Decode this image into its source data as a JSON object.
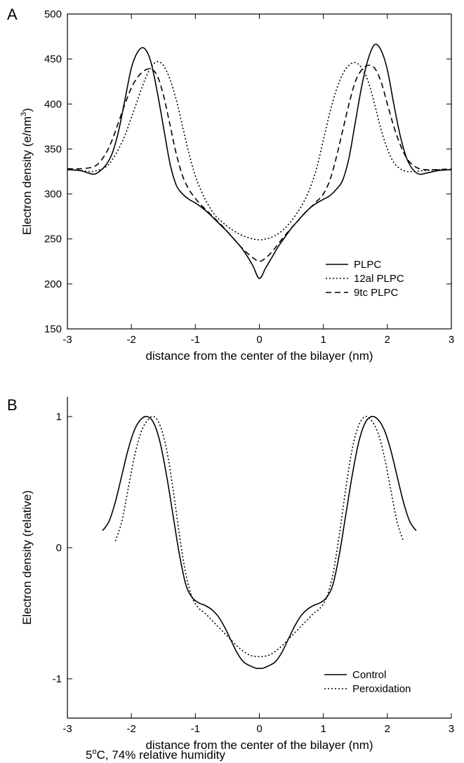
{
  "chart_data": [
    {
      "panel": "A",
      "type": "line",
      "xlabel": "distance from the center of the bilayer (nm)",
      "ylabel": "Electron density (e/nm",
      "ylabel_sup": "3",
      "ylabel_close": ")",
      "xlim": [
        -3,
        3
      ],
      "ylim": [
        150,
        500
      ],
      "xticks": [
        -3,
        -2,
        -1,
        0,
        1,
        2,
        3
      ],
      "yticks": [
        150,
        200,
        250,
        300,
        350,
        400,
        450,
        500
      ],
      "legend_position": "lower-right",
      "series": [
        {
          "name": "PLPC",
          "style": "solid",
          "x": [
            -3,
            -2.8,
            -2.6,
            -2.5,
            -2.4,
            -2.3,
            -2.2,
            -2.1,
            -2.0,
            -1.9,
            -1.8,
            -1.7,
            -1.6,
            -1.5,
            -1.4,
            -1.3,
            -1.2,
            -1.1,
            -1.0,
            -0.9,
            -0.8,
            -0.7,
            -0.6,
            -0.5,
            -0.4,
            -0.3,
            -0.2,
            -0.1,
            0,
            0.1,
            0.2,
            0.3,
            0.4,
            0.5,
            0.6,
            0.7,
            0.8,
            0.9,
            1.0,
            1.1,
            1.2,
            1.3,
            1.4,
            1.5,
            1.6,
            1.7,
            1.8,
            1.9,
            2.0,
            2.1,
            2.2,
            2.3,
            2.4,
            2.5,
            2.6,
            2.8,
            3
          ],
          "y": [
            327,
            326,
            322,
            325,
            332,
            345,
            370,
            405,
            440,
            458,
            462,
            448,
            415,
            375,
            335,
            310,
            300,
            294,
            290,
            285,
            279,
            272,
            265,
            258,
            250,
            242,
            232,
            220,
            206,
            218,
            230,
            242,
            252,
            262,
            270,
            278,
            285,
            290,
            294,
            298,
            305,
            315,
            340,
            380,
            420,
            450,
            466,
            460,
            438,
            400,
            365,
            340,
            327,
            322,
            323,
            326,
            327
          ]
        },
        {
          "name": "12al PLPC",
          "style": "dotted",
          "x": [
            -3,
            -2.8,
            -2.6,
            -2.4,
            -2.3,
            -2.2,
            -2.1,
            -2.0,
            -1.9,
            -1.8,
            -1.7,
            -1.6,
            -1.5,
            -1.4,
            -1.3,
            -1.2,
            -1.1,
            -1.0,
            -0.9,
            -0.8,
            -0.7,
            -0.6,
            -0.5,
            -0.4,
            -0.3,
            -0.2,
            -0.1,
            0,
            0.1,
            0.2,
            0.3,
            0.4,
            0.5,
            0.6,
            0.7,
            0.8,
            0.9,
            1.0,
            1.1,
            1.2,
            1.3,
            1.4,
            1.5,
            1.6,
            1.7,
            1.8,
            1.9,
            2.0,
            2.1,
            2.2,
            2.3,
            2.4,
            2.6,
            2.8,
            3
          ],
          "y": [
            327,
            326,
            325,
            330,
            338,
            350,
            365,
            385,
            405,
            425,
            440,
            447,
            443,
            428,
            405,
            375,
            345,
            320,
            302,
            288,
            277,
            270,
            264,
            259,
            255,
            252,
            250,
            249,
            250,
            252,
            256,
            262,
            270,
            280,
            292,
            308,
            330,
            360,
            390,
            415,
            433,
            443,
            446,
            440,
            425,
            400,
            372,
            350,
            335,
            328,
            325,
            325,
            326,
            327,
            327
          ]
        },
        {
          "name": "9tc PLPC",
          "style": "dashed",
          "x": [
            -3,
            -2.8,
            -2.6,
            -2.5,
            -2.4,
            -2.3,
            -2.2,
            -2.1,
            -2.0,
            -1.9,
            -1.8,
            -1.7,
            -1.6,
            -1.5,
            -1.4,
            -1.3,
            -1.2,
            -1.1,
            -1.0,
            -0.9,
            -0.8,
            -0.7,
            -0.6,
            -0.5,
            -0.4,
            -0.3,
            -0.2,
            -0.1,
            0,
            0.1,
            0.2,
            0.3,
            0.4,
            0.5,
            0.6,
            0.7,
            0.8,
            0.9,
            1.0,
            1.1,
            1.2,
            1.3,
            1.4,
            1.5,
            1.6,
            1.7,
            1.8,
            1.9,
            2.0,
            2.1,
            2.2,
            2.3,
            2.4,
            2.5,
            2.6,
            2.8,
            3
          ],
          "y": [
            328,
            328,
            330,
            335,
            345,
            360,
            380,
            400,
            418,
            430,
            437,
            439,
            432,
            410,
            378,
            345,
            320,
            305,
            295,
            287,
            280,
            273,
            266,
            258,
            250,
            242,
            235,
            229,
            225,
            229,
            236,
            245,
            254,
            262,
            270,
            278,
            285,
            292,
            300,
            315,
            340,
            370,
            400,
            425,
            438,
            443,
            440,
            425,
            400,
            375,
            355,
            340,
            332,
            328,
            327,
            327,
            328
          ]
        }
      ]
    },
    {
      "panel": "B",
      "type": "line",
      "xlabel": "distance from the center of the bilayer (nm)",
      "ylabel": "Electron density (relative)",
      "xlim": [
        -3,
        3
      ],
      "ylim": [
        -1.3,
        1.15
      ],
      "xticks": [
        -3,
        -2,
        -1,
        0,
        1,
        2,
        3
      ],
      "yticks": [
        -1,
        0,
        1
      ],
      "legend_position": "lower-right",
      "note": "5",
      "note_sup": "o",
      "note_rest": "C, 74% relative humidity",
      "series": [
        {
          "name": "Control",
          "style": "solid",
          "x": [
            -2.45,
            -2.35,
            -2.25,
            -2.15,
            -2.05,
            -1.95,
            -1.85,
            -1.75,
            -1.65,
            -1.55,
            -1.45,
            -1.35,
            -1.25,
            -1.15,
            -1.05,
            -0.95,
            -0.85,
            -0.75,
            -0.65,
            -0.55,
            -0.45,
            -0.35,
            -0.25,
            -0.15,
            -0.05,
            0,
            0.05,
            0.15,
            0.25,
            0.35,
            0.45,
            0.55,
            0.65,
            0.75,
            0.85,
            0.95,
            1.05,
            1.15,
            1.25,
            1.35,
            1.45,
            1.55,
            1.65,
            1.75,
            1.85,
            1.95,
            2.05,
            2.15,
            2.25,
            2.35,
            2.45
          ],
          "y": [
            0.13,
            0.2,
            0.35,
            0.55,
            0.75,
            0.9,
            0.98,
            1.0,
            0.95,
            0.8,
            0.55,
            0.25,
            -0.05,
            -0.28,
            -0.38,
            -0.42,
            -0.44,
            -0.47,
            -0.52,
            -0.6,
            -0.7,
            -0.8,
            -0.87,
            -0.9,
            -0.92,
            -0.92,
            -0.92,
            -0.9,
            -0.87,
            -0.8,
            -0.7,
            -0.6,
            -0.52,
            -0.47,
            -0.44,
            -0.42,
            -0.38,
            -0.28,
            -0.05,
            0.25,
            0.55,
            0.8,
            0.95,
            1.0,
            0.98,
            0.9,
            0.75,
            0.55,
            0.35,
            0.2,
            0.13
          ]
        },
        {
          "name": "Peroxidation",
          "style": "dotted",
          "x": [
            -2.25,
            -2.15,
            -2.05,
            -1.95,
            -1.85,
            -1.75,
            -1.65,
            -1.55,
            -1.45,
            -1.35,
            -1.25,
            -1.15,
            -1.05,
            -0.95,
            -0.85,
            -0.75,
            -0.65,
            -0.55,
            -0.45,
            -0.35,
            -0.25,
            -0.15,
            -0.05,
            0,
            0.05,
            0.15,
            0.25,
            0.35,
            0.45,
            0.55,
            0.65,
            0.75,
            0.85,
            0.95,
            1.05,
            1.15,
            1.25,
            1.35,
            1.45,
            1.55,
            1.65,
            1.75,
            1.85,
            1.95,
            2.05,
            2.15,
            2.25
          ],
          "y": [
            0.05,
            0.2,
            0.45,
            0.7,
            0.88,
            0.97,
            1.0,
            0.93,
            0.75,
            0.45,
            0.1,
            -0.2,
            -0.38,
            -0.46,
            -0.5,
            -0.55,
            -0.6,
            -0.65,
            -0.7,
            -0.75,
            -0.79,
            -0.82,
            -0.83,
            -0.83,
            -0.83,
            -0.82,
            -0.79,
            -0.75,
            -0.7,
            -0.65,
            -0.6,
            -0.55,
            -0.5,
            -0.46,
            -0.38,
            -0.2,
            0.1,
            0.45,
            0.75,
            0.93,
            1.0,
            0.97,
            0.88,
            0.7,
            0.45,
            0.2,
            0.05
          ]
        }
      ]
    }
  ]
}
